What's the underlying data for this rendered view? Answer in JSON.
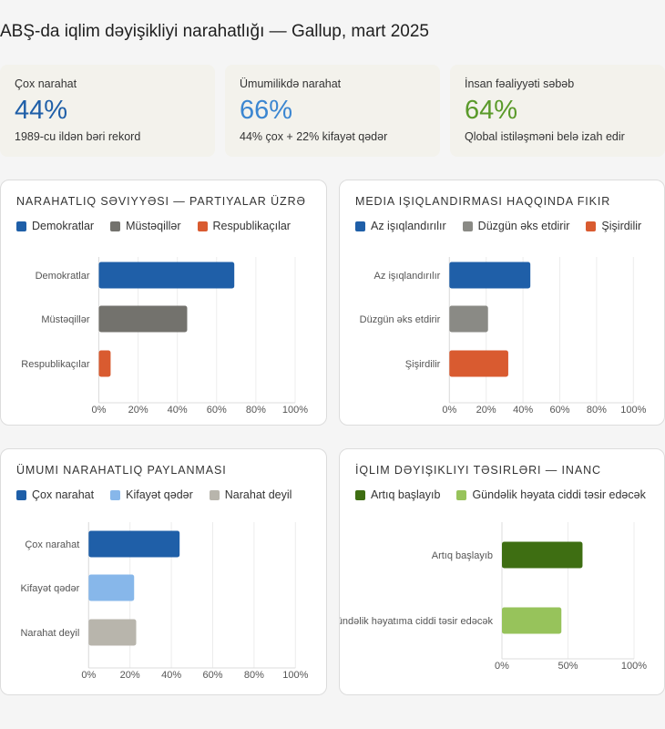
{
  "page": {
    "title": "ABŞ-da iqlim dəyişikliyi narahatlığı — Gallup, mart 2025"
  },
  "kpis": [
    {
      "label": "Çox narahat",
      "value": "44%",
      "sub": "1989-cu ildən bəri rekord",
      "color": "#1f5fa8"
    },
    {
      "label": "Ümumilikdə narahat",
      "value": "66%",
      "sub": "44% çox + 22% kifayət qədər",
      "color": "#3b86d1"
    },
    {
      "label": "İnsan fəaliyyəti səbəb",
      "value": "64%",
      "sub": "Qlobal istiləşməni belə izah edir",
      "color": "#5a9a2a"
    }
  ],
  "chart_data": [
    {
      "type": "bar",
      "orientation": "horizontal",
      "title": "NARAHATLIQ SƏVIYYƏSI — PARTIYALAR ÜZRƏ",
      "legend": [
        "Demokratlar",
        "Müstəqillər",
        "Respublikaçılar"
      ],
      "legend_position": "top-left",
      "categories": [
        "Demokratlar",
        "Müstəqillər",
        "Respublikaçılar"
      ],
      "values": [
        69,
        45,
        6
      ],
      "colors": [
        "#1f5fa8",
        "#73726d",
        "#d95b30"
      ],
      "xlim": [
        0,
        100
      ],
      "xticks": [
        "0%",
        "20%",
        "40%",
        "60%",
        "80%",
        "100%"
      ],
      "grid": true,
      "xlabel": "",
      "ylabel": ""
    },
    {
      "type": "bar",
      "orientation": "horizontal",
      "title": "MEDIA IŞIQLANDIRMASI HAQQINDA FIKIR",
      "legend": [
        "Az işıqlandırılır",
        "Düzgün əks etdirir",
        "Şişirdilir"
      ],
      "legend_position": "top-left",
      "categories": [
        "Az işıqlandırılır",
        "Düzgün əks etdirir",
        "Şişirdilir"
      ],
      "values": [
        44,
        21,
        32
      ],
      "colors": [
        "#1f5fa8",
        "#8a8a85",
        "#d95b30"
      ],
      "xlim": [
        0,
        100
      ],
      "xticks": [
        "0%",
        "20%",
        "40%",
        "60%",
        "80%",
        "100%"
      ],
      "grid": true,
      "xlabel": "",
      "ylabel": ""
    },
    {
      "type": "bar",
      "orientation": "horizontal",
      "title": "ÜMUMI NARAHATLIQ PAYLANMASI",
      "legend": [
        "Çox narahat",
        "Kifayət qədər",
        "Narahat deyil"
      ],
      "legend_position": "top-left",
      "categories": [
        "Çox narahat",
        "Kifayət qədər",
        "Narahat deyil"
      ],
      "values": [
        44,
        22,
        23
      ],
      "colors": [
        "#1f5fa8",
        "#87b7ea",
        "#b8b5ac"
      ],
      "xlim": [
        0,
        100
      ],
      "xticks": [
        "0%",
        "20%",
        "40%",
        "60%",
        "80%",
        "100%"
      ],
      "grid": true,
      "xlabel": "",
      "ylabel": ""
    },
    {
      "type": "bar",
      "orientation": "horizontal",
      "title": "İQLIM DƏYIŞIKLIYI TƏSIRLƏRI — INANC",
      "legend": [
        "Artıq başlayıb",
        "Gündəlik həyata ciddi təsir edəcək"
      ],
      "legend_position": "top-left",
      "categories": [
        "Artıq başlayıb",
        "Gündəlik həyatıma ciddi təsir edəcək"
      ],
      "values": [
        61,
        45
      ],
      "colors": [
        "#3e6e12",
        "#97c35b"
      ],
      "xlim": [
        0,
        100
      ],
      "xticks": [
        "0%",
        "50%",
        "100%"
      ],
      "grid": true,
      "xlabel": "",
      "ylabel": ""
    }
  ]
}
